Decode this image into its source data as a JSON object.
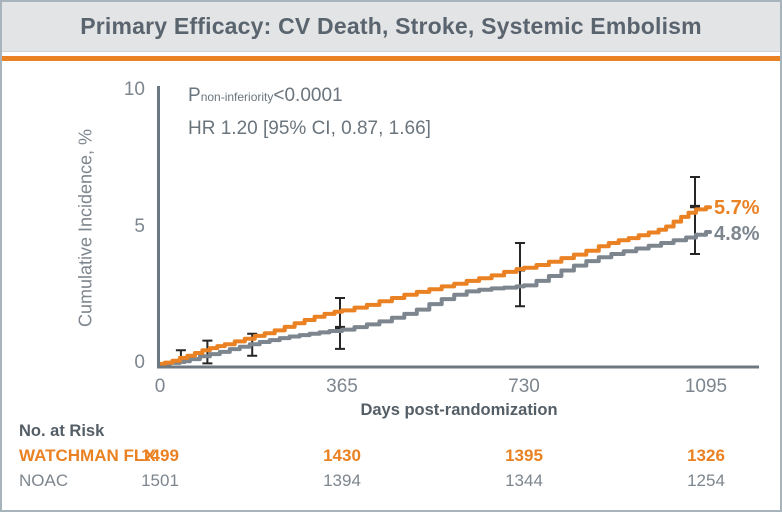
{
  "header": {
    "title": "Primary Efficacy: CV Death, Stroke, Systemic Embolism"
  },
  "annotation": {
    "p": "P",
    "p_sub": "non-inferiority",
    "p_value": "<0.0001",
    "hr": "HR 1.20 [95% CI, 0.87, 1.66]"
  },
  "colors": {
    "orange": "#EA8122",
    "gray": "#7D868E",
    "axis": "#6E7880",
    "error_bar": "#262626",
    "dark_text": "#545E66",
    "title_text": "#5A646E",
    "header_bg": "#E2E4E6"
  },
  "chart_data": {
    "type": "line",
    "subtype": "kaplan-meier-step",
    "title": "Primary Efficacy: CV Death, Stroke, Systemic Embolism",
    "xlabel": "Days post-randomization",
    "ylabel": "Cumulative Incidence, %",
    "xlim": [
      0,
      1200
    ],
    "ylim": [
      0,
      10
    ],
    "x_ticks": [
      "0",
      "365",
      "730",
      "1095"
    ],
    "x_tick_values": [
      0,
      365,
      730,
      1095
    ],
    "y_ticks": [
      "0",
      "5",
      "10"
    ],
    "y_tick_values": [
      0,
      5,
      10
    ],
    "grid": "off",
    "legend_position": "end-of-line-labels",
    "series": [
      {
        "name": "WATCHMAN FLX",
        "color": "#EA8122",
        "end_label": "5.7%",
        "final_value_pct": 5.7,
        "points": [
          [
            0,
            0
          ],
          [
            10,
            0.05
          ],
          [
            25,
            0.12
          ],
          [
            40,
            0.22
          ],
          [
            55,
            0.3
          ],
          [
            70,
            0.4
          ],
          [
            85,
            0.5
          ],
          [
            100,
            0.58
          ],
          [
            115,
            0.65
          ],
          [
            130,
            0.72
          ],
          [
            150,
            0.82
          ],
          [
            170,
            0.92
          ],
          [
            190,
            1.02
          ],
          [
            210,
            1.12
          ],
          [
            230,
            1.22
          ],
          [
            250,
            1.35
          ],
          [
            270,
            1.48
          ],
          [
            290,
            1.6
          ],
          [
            310,
            1.72
          ],
          [
            330,
            1.82
          ],
          [
            350,
            1.9
          ],
          [
            365,
            1.95
          ],
          [
            390,
            2.05
          ],
          [
            415,
            2.15
          ],
          [
            440,
            2.28
          ],
          [
            465,
            2.4
          ],
          [
            490,
            2.52
          ],
          [
            515,
            2.62
          ],
          [
            540,
            2.72
          ],
          [
            565,
            2.82
          ],
          [
            590,
            2.92
          ],
          [
            615,
            3.02
          ],
          [
            640,
            3.12
          ],
          [
            665,
            3.22
          ],
          [
            690,
            3.35
          ],
          [
            715,
            3.45
          ],
          [
            730,
            3.5
          ],
          [
            755,
            3.6
          ],
          [
            780,
            3.72
          ],
          [
            805,
            3.85
          ],
          [
            830,
            3.98
          ],
          [
            855,
            4.12
          ],
          [
            880,
            4.28
          ],
          [
            900,
            4.4
          ],
          [
            920,
            4.5
          ],
          [
            940,
            4.58
          ],
          [
            960,
            4.68
          ],
          [
            980,
            4.78
          ],
          [
            1000,
            4.88
          ],
          [
            1015,
            5.0
          ],
          [
            1030,
            5.18
          ],
          [
            1045,
            5.35
          ],
          [
            1060,
            5.5
          ],
          [
            1075,
            5.62
          ],
          [
            1095,
            5.7
          ]
        ]
      },
      {
        "name": "NOAC",
        "color": "#7D868E",
        "end_label": "4.8%",
        "final_value_pct": 4.8,
        "points": [
          [
            0,
            0
          ],
          [
            20,
            0.04
          ],
          [
            40,
            0.1
          ],
          [
            60,
            0.18
          ],
          [
            80,
            0.28
          ],
          [
            100,
            0.36
          ],
          [
            120,
            0.44
          ],
          [
            140,
            0.54
          ],
          [
            160,
            0.63
          ],
          [
            180,
            0.72
          ],
          [
            200,
            0.8
          ],
          [
            220,
            0.87
          ],
          [
            240,
            0.94
          ],
          [
            260,
            1.0
          ],
          [
            280,
            1.05
          ],
          [
            300,
            1.1
          ],
          [
            320,
            1.15
          ],
          [
            340,
            1.2
          ],
          [
            365,
            1.25
          ],
          [
            390,
            1.34
          ],
          [
            415,
            1.44
          ],
          [
            440,
            1.55
          ],
          [
            465,
            1.68
          ],
          [
            490,
            1.82
          ],
          [
            515,
            1.98
          ],
          [
            540,
            2.18
          ],
          [
            565,
            2.36
          ],
          [
            590,
            2.52
          ],
          [
            615,
            2.64
          ],
          [
            640,
            2.7
          ],
          [
            665,
            2.75
          ],
          [
            690,
            2.78
          ],
          [
            715,
            2.82
          ],
          [
            730,
            2.86
          ],
          [
            755,
            3.02
          ],
          [
            780,
            3.2
          ],
          [
            805,
            3.4
          ],
          [
            830,
            3.58
          ],
          [
            855,
            3.74
          ],
          [
            880,
            3.88
          ],
          [
            905,
            4.0
          ],
          [
            930,
            4.1
          ],
          [
            955,
            4.2
          ],
          [
            980,
            4.3
          ],
          [
            1005,
            4.4
          ],
          [
            1030,
            4.5
          ],
          [
            1055,
            4.6
          ],
          [
            1075,
            4.7
          ],
          [
            1095,
            4.8
          ]
        ]
      }
    ],
    "error_bars": [
      {
        "day": 42,
        "top": 0.5,
        "bottom": 0.05
      },
      {
        "day": 95,
        "top": 0.85,
        "bottom": 0.02
      },
      {
        "day": 185,
        "top": 1.1,
        "bottom": 0.3
      },
      {
        "day": 361,
        "top": 2.4,
        "bottom": 1.35
      },
      {
        "day": 361,
        "top": 1.3,
        "bottom": 0.55
      },
      {
        "day": 722,
        "top": 4.4,
        "bottom": 3.45
      },
      {
        "day": 722,
        "top": 3.4,
        "bottom": 2.1
      },
      {
        "day": 1073,
        "top": 6.8,
        "bottom": 5.75
      },
      {
        "day": 1073,
        "top": 5.7,
        "bottom": 4.0
      }
    ]
  },
  "risk_table": {
    "title": "No. at Risk",
    "columns": [
      "0",
      "365",
      "730",
      "1095"
    ],
    "rows": [
      {
        "label": "WATCHMAN FLX",
        "values": [
          "1499",
          "1430",
          "1395",
          "1326"
        ]
      },
      {
        "label": "NOAC",
        "values": [
          "1501",
          "1394",
          "1344",
          "1254"
        ]
      }
    ]
  }
}
